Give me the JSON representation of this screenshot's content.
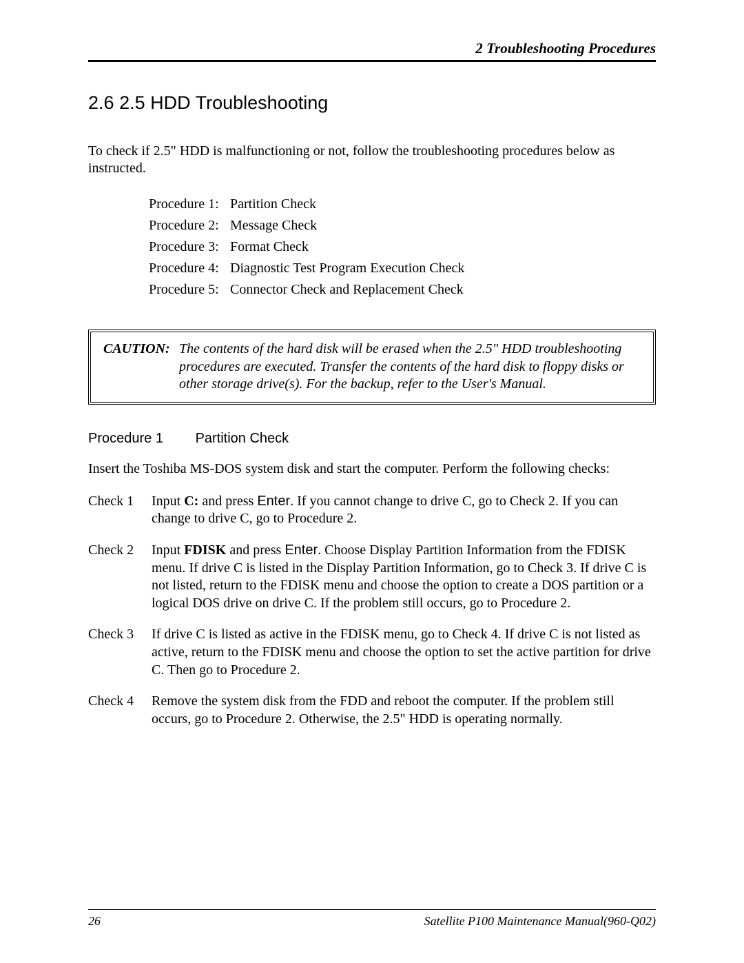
{
  "header": {
    "running_title": "2 Troubleshooting Procedures"
  },
  "section": {
    "number": "2.6",
    "qualifier": "2.5",
    "title": "HDD Troubleshooting"
  },
  "intro": "To check if 2.5\" HDD is malfunctioning or not, follow the troubleshooting procedures below as instructed.",
  "procedures": [
    {
      "label": "Procedure 1:",
      "text": "Partition Check"
    },
    {
      "label": "Procedure 2:",
      "text": "Message Check"
    },
    {
      "label": "Procedure 3:",
      "text": "Format Check"
    },
    {
      "label": "Procedure 4:",
      "text": "Diagnostic Test Program Execution Check"
    },
    {
      "label": "Procedure 5:",
      "text": "Connector Check and Replacement Check"
    }
  ],
  "caution": {
    "label": "CAUTION:",
    "text": "The contents of the hard disk will be erased when the 2.5\" HDD troubleshooting procedures are executed. Transfer the contents of the hard disk to floppy disks or other storage drive(s). For the backup, refer to the User's Manual."
  },
  "subhead": {
    "num": "Procedure 1",
    "title": "Partition Check"
  },
  "body1": "Insert the Toshiba MS-DOS system disk and start the computer. Perform the following checks:",
  "checks": {
    "c1": {
      "label": "Check 1",
      "pre": "Input ",
      "cmd1": "C:",
      "mid1": " and press ",
      "key1": "Enter",
      "post": ". If you cannot change to drive C, go to Check 2. If you can change to drive C, go to Procedure 2."
    },
    "c2": {
      "label": "Check 2",
      "pre": "Input ",
      "cmd1": "FDISK",
      "mid1": " and press ",
      "key1": "Enter",
      "post": ". Choose Display Partition Information from the FDISK menu. If drive C is listed in the Display Partition Information, go to Check 3. If drive C is not listed, return to the FDISK menu and choose the option to create a DOS partition or a logical DOS drive on drive C. If the problem still occurs, go to Procedure 2."
    },
    "c3": {
      "label": "Check 3",
      "text": "If drive C is listed as active in the FDISK menu, go to Check 4. If drive C is not listed as active, return to the FDISK menu and choose the option to set the active partition for drive C. Then go to Procedure 2."
    },
    "c4": {
      "label": "Check 4",
      "text": "Remove the system disk from the FDD and reboot the computer. If the problem still occurs, go to Procedure 2. Otherwise, the 2.5\" HDD is operating normally."
    }
  },
  "footer": {
    "page": "26",
    "manual": "Satellite P100 Maintenance Manual(960-Q02)"
  }
}
